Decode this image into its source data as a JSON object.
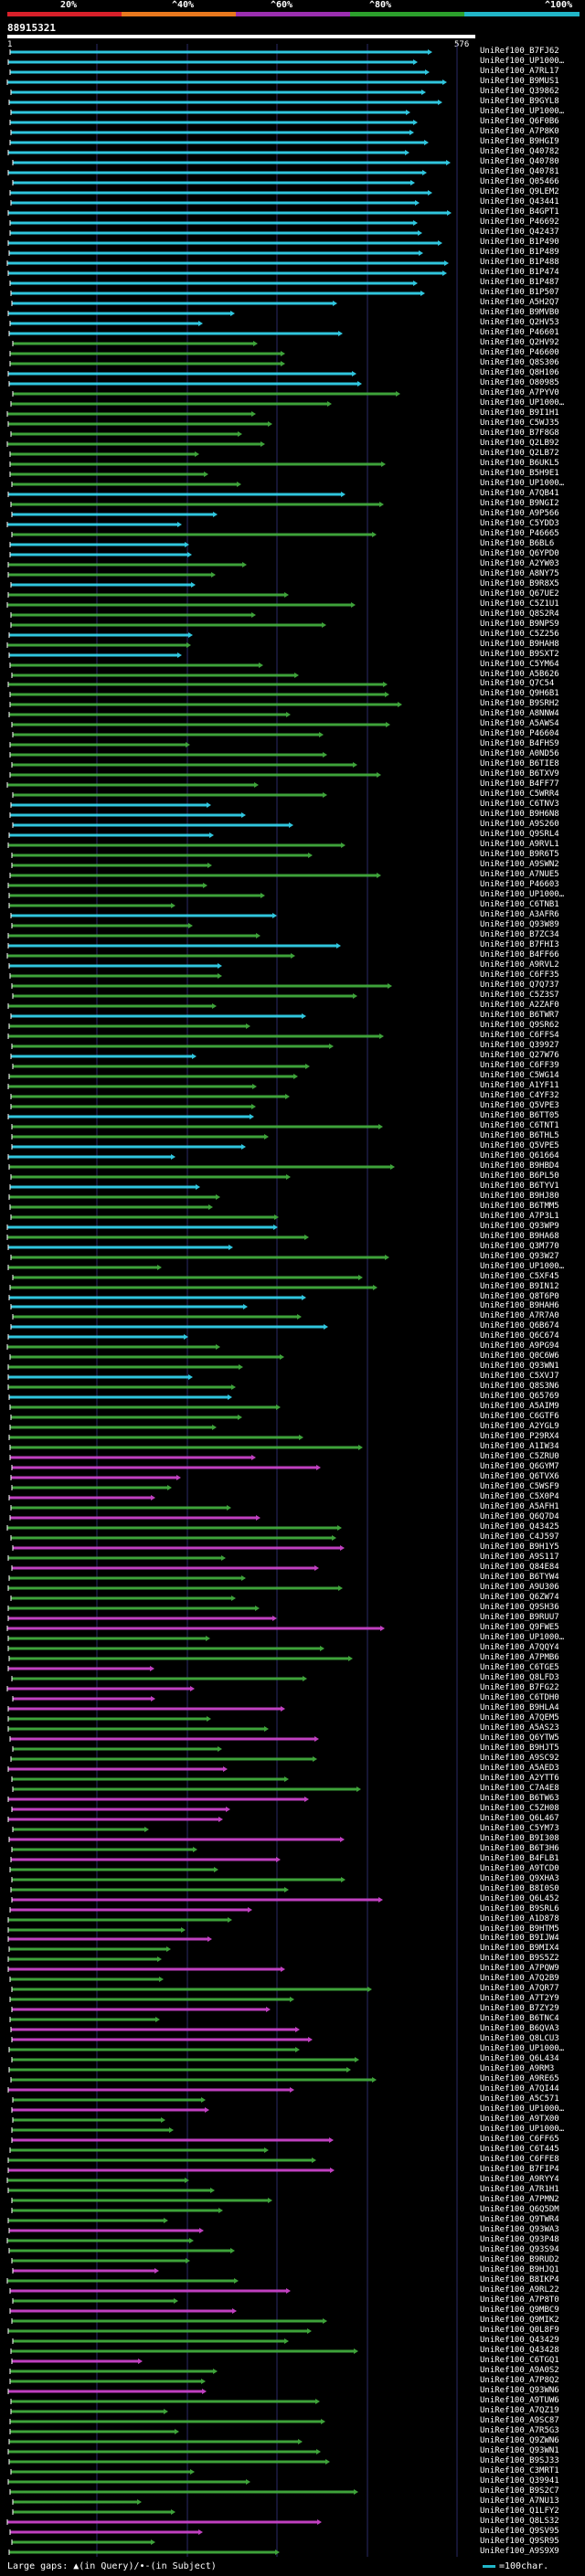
{
  "legend": {
    "labels": [
      "20%",
      "^40%",
      "^60%",
      "^80%",
      "^100%"
    ],
    "colors": [
      "#d8202a",
      "#e8781e",
      "#9b2fb0",
      "#2ca02c",
      "#21b5c7"
    ]
  },
  "query": {
    "id": "88915321",
    "start": "1",
    "end": "576"
  },
  "hit_colors": {
    "cyan": "#30c6de",
    "green": "#3ea23a",
    "magenta": "#c040c0"
  },
  "hits": [
    "UniRef100_B7FJ62",
    "UniRef100_UP1000…",
    "UniRef100_A7RL17",
    "UniRef100_B9MUS1",
    "UniRef100_Q39862",
    "UniRef100_B9GYL8",
    "UniRef100_UP1000…",
    "UniRef100_Q6F0B6",
    "UniRef100_A7P8K0",
    "UniRef100_B9HGI9",
    "UniRef100_Q40782",
    "UniRef100_Q40780",
    "UniRef100_Q40781",
    "UniRef100_Q05466",
    "UniRef100_Q9LEM2",
    "UniRef100_Q43441",
    "UniRef100_B4GPT1",
    "UniRef100_P46692",
    "UniRef100_Q42437",
    "UniRef100_B1P490",
    "UniRef100_B1P489",
    "UniRef100_B1P488",
    "UniRef100_B1P474",
    "UniRef100_B1P487",
    "UniRef100_B1P507",
    "UniRef100_A5H2Q7",
    "UniRef100_B9MVB0",
    "UniRef100_Q2HV53",
    "UniRef100_P46601",
    "UniRef100_Q2HV92",
    "UniRef100_P46600",
    "UniRef100_Q8S306",
    "UniRef100_Q8H106",
    "UniRef100_O80985",
    "UniRef100_A7PYV0",
    "UniRef100_UP1000…",
    "UniRef100_B9I1H1",
    "UniRef100_C5WJ35",
    "UniRef100_B7F8G8",
    "UniRef100_Q2LB92",
    "UniRef100_Q2LB72",
    "UniRef100_B6UKL5",
    "UniRef100_B5H9E1",
    "UniRef100_UP1000…",
    "UniRef100_A7QB41",
    "UniRef100_B9NGI2",
    "UniRef100_A9P566",
    "UniRef100_C5YDD3",
    "UniRef100_P46665",
    "UniRef100_B6BL6",
    "UniRef100_Q6YPD0",
    "UniRef100_A2YW03",
    "UniRef100_A8NY75",
    "UniRef100_B9R8X5",
    "UniRef100_Q67UE2",
    "UniRef100_C5Z1U1",
    "UniRef100_Q8S2R4",
    "UniRef100_B9NPS9",
    "UniRef100_C5Z256",
    "UniRef100_B9HAH8",
    "UniRef100_B9SXT2",
    "UniRef100_C5YM64",
    "UniRef100_A5B626",
    "UniRef100_Q7C54",
    "UniRef100_Q9H6B1",
    "UniRef100_B9SRH2",
    "UniRef100_A8NNW4",
    "UniRef100_A5AWS4",
    "UniRef100_P46604",
    "UniRef100_B4FHS9",
    "UniRef100_A0ND56",
    "UniRef100_B6TIE8",
    "UniRef100_B6TXV9",
    "UniRef100_B4FF77",
    "UniRef100_C5WRR4",
    "UniRef100_C6TNV3",
    "UniRef100_B9H6N8",
    "UniRef100_A9S260",
    "UniRef100_Q9SRL4",
    "UniRef100_A9RVL1",
    "UniRef100_B9R6T5",
    "UniRef100_A9SWN2",
    "UniRef100_A7NUE5",
    "UniRef100_P46603",
    "UniRef100_UP1000…",
    "UniRef100_C6TNB1",
    "UniRef100_A3AFR6",
    "UniRef100_Q93W89",
    "UniRef100_B7ZC34",
    "UniRef100_B7FHI3",
    "UniRef100_B4FF66",
    "UniRef100_A9RVL2",
    "UniRef100_C6FF35",
    "UniRef100_Q7Q737",
    "UniRef100_C5Z3S7",
    "UniRef100_A2ZAF0",
    "UniRef100_B6TWR7",
    "UniRef100_Q9SR62",
    "UniRef100_C6FFS4",
    "UniRef100_Q39927",
    "UniRef100_Q27W76",
    "UniRef100_C6FF39",
    "UniRef100_C5WG14",
    "UniRef100_A1YF11",
    "UniRef100_C4YF32",
    "UniRef100_Q5VPE3",
    "UniRef100_B6TT05",
    "UniRef100_C6TNT1",
    "UniRef100_B6THL5",
    "UniRef100_Q5VPE5",
    "UniRef100_Q61664",
    "UniRef100_B9HBD4",
    "UniRef100_B6PL50",
    "UniRef100_B6TYV1",
    "UniRef100_B9HJ80",
    "UniRef100_B6TMM5",
    "UniRef100_A7P3L1",
    "UniRef100_Q93WP9",
    "UniRef100_B9HA68",
    "UniRef100_Q3M770",
    "UniRef100_Q93W27",
    "UniRef100_UP1000…",
    "UniRef100_C5XF45",
    "UniRef100_B9IN12",
    "UniRef100_Q8T6P0",
    "UniRef100_B9HAH6",
    "UniRef100_A7R7A0",
    "UniRef100_Q6B674",
    "UniRef100_Q6C674",
    "UniRef100_A9PG94",
    "UniRef100_Q0C6W6",
    "UniRef100_Q93WN1",
    "UniRef100_C5XVJ7",
    "UniRef100_Q8S3N6",
    "UniRef100_Q65769",
    "UniRef100_A5AIM9",
    "UniRef100_C6GTF6",
    "UniRef100_A2YGL9",
    "UniRef100_P29RX4",
    "UniRef100_A1IW34",
    "UniRef100_C5ZRU0",
    "UniRef100_Q6GYM7",
    "UniRef100_Q6TVX6",
    "UniRef100_C5WSF9",
    "UniRef100_C5X0P4",
    "UniRef100_A5AFH1",
    "UniRef100_Q6Q7D4",
    "UniRef100_Q43425",
    "UniRef100_C4J597",
    "UniRef100_B9H1Y5",
    "UniRef100_A9S117",
    "UniRef100_Q84E84",
    "UniRef100_B6TYW4",
    "UniRef100_A9U306",
    "UniRef100_Q6ZW74",
    "UniRef100_Q9SH36",
    "UniRef100_B9RUU7",
    "UniRef100_Q9FWE5",
    "UniRef100_UP1000…",
    "UniRef100_A7QQY4",
    "UniRef100_A7PMB6",
    "UniRef100_C6TGE5",
    "UniRef100_Q8LFD3",
    "UniRef100_B7FG22",
    "UniRef100_C6TDH0",
    "UniRef100_B9HLA4",
    "UniRef100_A7QEM5",
    "UniRef100_A5AS23",
    "UniRef100_Q6YTW5",
    "UniRef100_B9HJT5",
    "UniRef100_A9SC92",
    "UniRef100_A5AED3",
    "UniRef100_A2YTT6",
    "UniRef100_C7A4E8",
    "UniRef100_B6TW63",
    "UniRef100_C5ZH08",
    "UniRef100_Q6L467",
    "UniRef100_C5YM73",
    "UniRef100_B9I308",
    "UniRef100_B6T3H6",
    "UniRef100_B4FLB1",
    "UniRef100_A9TCD0",
    "UniRef100_Q9XHA3",
    "UniRef100_B8I0S0",
    "UniRef100_Q6L452",
    "UniRef100_B9SRL6",
    "UniRef100_A1D878",
    "UniRef100_B9HTM5",
    "UniRef100_B9IJW4",
    "UniRef100_B9MIX4",
    "UniRef100_B9S5Z2",
    "UniRef100_A7PQW9",
    "UniRef100_A7Q2B9",
    "UniRef100_A7QR77",
    "UniRef100_A7T2Y9",
    "UniRef100_B7ZY29",
    "UniRef100_B6TNC4",
    "UniRef100_B6QVA3",
    "UniRef100_Q8LCU3",
    "UniRef100_UP1000…",
    "UniRef100_Q6L434",
    "UniRef100_A9RM3",
    "UniRef100_A9RE65",
    "UniRef100_A7QI44",
    "UniRef100_A5C571",
    "UniRef100_UP1000…",
    "UniRef100_A9TX00",
    "UniRef100_UP1000…",
    "UniRef100_C6FF65",
    "UniRef100_C6T445",
    "UniRef100_C6FFE8",
    "UniRef100_B7FIP4",
    "UniRef100_A9RYY4",
    "UniRef100_A7R1H1",
    "UniRef100_A7PMN2",
    "UniRef100_Q6Q5DM",
    "UniRef100_Q9TWR4",
    "UniRef100_Q93WA3",
    "UniRef100_Q93P48",
    "UniRef100_Q93S94",
    "UniRef100_B9RUD2",
    "UniRef100_B9HJQ1",
    "UniRef100_B8IKP4",
    "UniRef100_A9RL22",
    "UniRef100_A7P8T0",
    "UniRef100_Q9MBC9",
    "UniRef100_Q9MIK2",
    "UniRef100_Q0L8F9",
    "UniRef100_Q43429",
    "UniRef100_Q43428",
    "UniRef100_C6TGQ1",
    "UniRef100_A9A0S2",
    "UniRef100_A7P8Q2",
    "UniRef100_Q93WN6",
    "UniRef100_A9TUW6",
    "UniRef100_A7QZ19",
    "UniRef100_A9SC87",
    "UniRef100_A7R5G3",
    "UniRef100_Q9ZWN6",
    "UniRef100_Q93WN1",
    "UniRef100_B9SJ33",
    "UniRef100_C3MRT1",
    "UniRef100_Q39941",
    "UniRef100_B9S2C7",
    "UniRef100_A7NU13",
    "UniRef100_Q1LFY2",
    "UniRef100_Q8LS32",
    "UniRef100_Q9SV95",
    "UniRef100_Q9SR95",
    "UniRef100_A9S9X9"
  ],
  "footer": {
    "text": "Large gaps: ▲(in Query)/∙-(in Subject)",
    "scale": "=100char."
  }
}
